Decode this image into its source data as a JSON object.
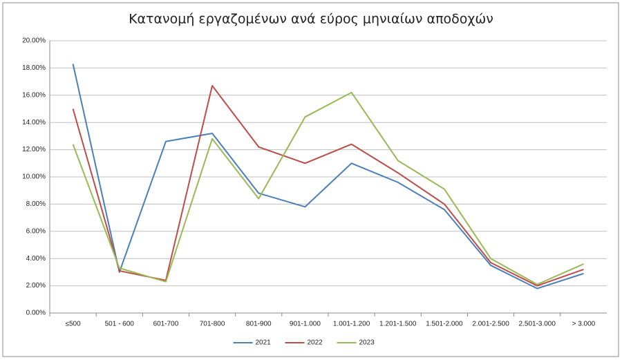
{
  "chart_data": {
    "type": "line",
    "title": "Κατανομή εργαζομένων ανά εύρος μηνιαίων αποδοχών",
    "categories": [
      "≤500",
      "501 - 600",
      "601-700",
      "701-800",
      "801-900",
      "901-1.000",
      "1.001-1.200",
      "1.201-1.500",
      "1.501-2.000",
      "2.001-2.500",
      "2.501-3.000",
      "> 3.000"
    ],
    "series": [
      {
        "name": "2021",
        "color": "#4a7ebb",
        "values": [
          18.3,
          3.0,
          12.6,
          13.2,
          8.8,
          7.8,
          11.0,
          9.6,
          7.6,
          3.5,
          1.8,
          2.9
        ]
      },
      {
        "name": "2022",
        "color": "#be4b48",
        "values": [
          15.0,
          3.1,
          2.4,
          16.7,
          12.2,
          11.0,
          12.4,
          10.3,
          8.0,
          3.7,
          2.0,
          3.2
        ]
      },
      {
        "name": "2023",
        "color": "#98b954",
        "values": [
          12.4,
          3.3,
          2.3,
          12.8,
          8.4,
          14.4,
          16.2,
          11.2,
          9.1,
          4.0,
          2.1,
          3.6
        ]
      }
    ],
    "ylim": [
      0,
      20
    ],
    "yticks": [
      {
        "value": 0,
        "label": "0.00%"
      },
      {
        "value": 2,
        "label": "2.00%"
      },
      {
        "value": 4,
        "label": "4.00%"
      },
      {
        "value": 6,
        "label": "6.00%"
      },
      {
        "value": 8,
        "label": "8.00%"
      },
      {
        "value": 10,
        "label": "10.00%"
      },
      {
        "value": 12,
        "label": "12.00%"
      },
      {
        "value": 14,
        "label": "14.00%"
      },
      {
        "value": 16,
        "label": "16.00%"
      },
      {
        "value": 18,
        "label": "18.00%"
      },
      {
        "value": 20,
        "label": "20.00%"
      }
    ],
    "grid": true,
    "legend": "bottom"
  }
}
